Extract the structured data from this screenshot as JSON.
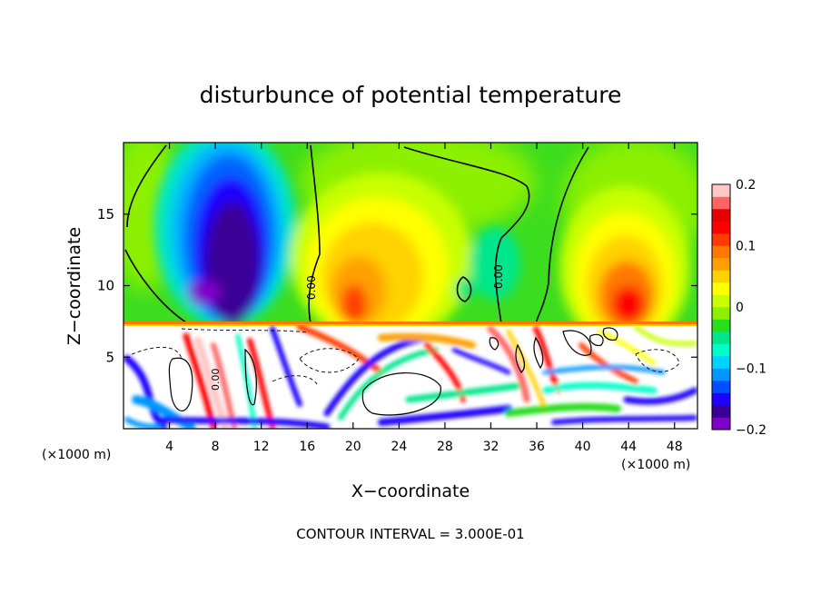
{
  "chart_data": {
    "type": "heatmap",
    "title": "disturbunce of potential temperature",
    "xlabel": "X−coordinate",
    "ylabel": "Z−coordinate",
    "xunit_left": "(×1000 m)",
    "xunit_right": "(×1000 m)",
    "xlim": [
      0,
      50
    ],
    "ylim": [
      0,
      20
    ],
    "xticks": [
      4,
      8,
      12,
      16,
      20,
      24,
      28,
      32,
      36,
      40,
      44,
      48
    ],
    "xtick_labels": [
      "4",
      "8",
      "12",
      "16",
      "20",
      "24",
      "28",
      "32",
      "36",
      "40",
      "44",
      "48"
    ],
    "yticks": [
      5,
      10,
      15
    ],
    "ytick_labels": [
      "5",
      "10",
      "15"
    ],
    "colorbar": {
      "range": [
        -0.2,
        0.2
      ],
      "ticks": [
        0.2,
        0.1,
        0,
        -0.1,
        -0.2
      ],
      "tick_labels": [
        "0.2",
        "0.1",
        "0",
        "−0.1",
        "−0.2"
      ],
      "colors": [
        "#7f00c8",
        "#3a0096",
        "#1e00ff",
        "#0050ff",
        "#0096ff",
        "#00d2ff",
        "#00ffc8",
        "#00e68c",
        "#28dc1e",
        "#8cf000",
        "#c8ff00",
        "#ffff00",
        "#ffd200",
        "#ffa000",
        "#ff7800",
        "#ff3c00",
        "#ff0000",
        "#e60000",
        "#ff6464",
        "#ffc8c8"
      ]
    },
    "contour_labels": [
      "0.00",
      "0.00",
      "0.00"
    ],
    "annotation": "CONTOUR INTERVAL = 3.000E-01",
    "interface_height": 7.2
  }
}
